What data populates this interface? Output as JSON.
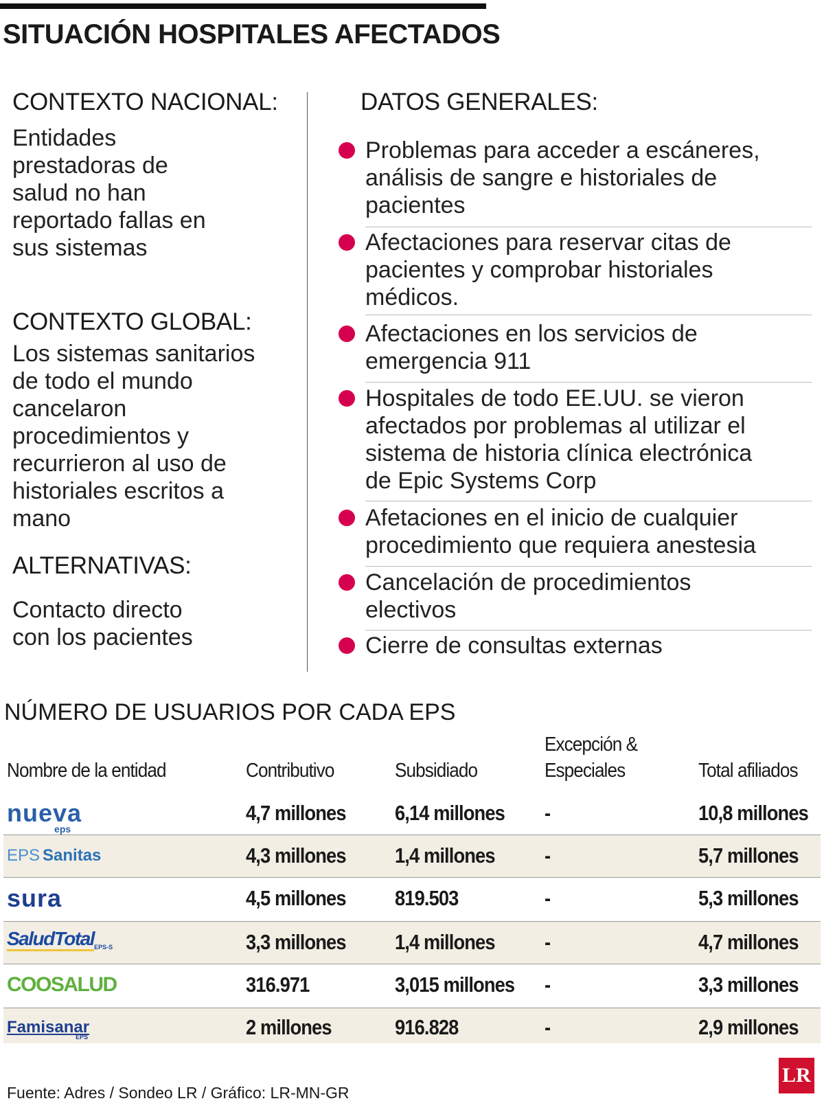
{
  "header": {
    "title": "SITUACIÓN HOSPITALES AFECTADOS"
  },
  "left": [
    {
      "heading": "CONTEXTO NACIONAL:",
      "lines": [
        "Entidades",
        "prestadoras de",
        "salud no han",
        "reportado fallas en",
        "sus sistemas"
      ]
    },
    {
      "heading": "CONTEXTO GLOBAL:",
      "lines": [
        "Los sistemas sanitarios",
        "de todo el mundo",
        "cancelaron",
        "procedimientos y",
        "recurrieron al uso de",
        "historiales escritos a",
        "mano"
      ]
    },
    {
      "heading": "ALTERNATIVAS:",
      "lines": [
        "Contacto directo",
        "con los pacientes"
      ]
    }
  ],
  "right": {
    "heading": "DATOS GENERALES:",
    "items": [
      [
        "Problemas para acceder a escáneres,",
        "análisis de sangre e historiales de",
        "pacientes"
      ],
      [
        "Afectaciones para reservar citas de",
        "pacientes y comprobar historiales",
        "médicos."
      ],
      [
        "Afectaciones en los servicios de",
        "emergencia 911"
      ],
      [
        "Hospitales de todo EE.UU. se vieron",
        "afectados por problemas al utilizar el",
        "sistema de historia clínica electrónica",
        "de Epic Systems Corp"
      ],
      [
        "Afetaciones en el inicio de cualquier",
        "procedimiento que requiera anestesia"
      ],
      [
        "Cancelación de procedimientos",
        "electivos"
      ],
      [
        "Cierre de consultas externas"
      ]
    ]
  },
  "table": {
    "title": "NÚMERO DE USUARIOS POR CADA EPS",
    "headers": [
      [
        "Nombre de la entidad"
      ],
      [
        "Contributivo"
      ],
      [
        "Subsidiado"
      ],
      [
        "Excepción &",
        "Especiales"
      ],
      [
        "Total afiliados"
      ]
    ],
    "rows": [
      {
        "logo": [
          "nueva",
          "eps"
        ],
        "cells": [
          "4,7 millones",
          "6,14 millones",
          "-",
          "10,8 millones"
        ]
      },
      {
        "logo": [
          "EPS",
          "Sanitas"
        ],
        "cells": [
          "4,3 millones",
          "1,4 millones",
          "-",
          "5,7 millones"
        ]
      },
      {
        "logo": [
          "sura"
        ],
        "cells": [
          "4,5 millones",
          "819.503",
          "-",
          "5,3 millones"
        ]
      },
      {
        "logo": [
          "SaludTotal",
          "EPS-S"
        ],
        "cells": [
          "3,3 millones",
          "1,4 millones",
          "-",
          "4,7 millones"
        ]
      },
      {
        "logo": [
          "COOSALUD"
        ],
        "cells": [
          "316.971",
          "3,015 millones",
          "-",
          "3,3 millones"
        ]
      },
      {
        "logo": [
          "Famisanar",
          "EPS"
        ],
        "cells": [
          "2 millones",
          "916.828",
          "-",
          "2,9 millones"
        ]
      }
    ]
  },
  "footer": {
    "source": "Fuente: Adres / Sondeo LR / Gráfico: LR-MN-GR",
    "brand": "LR"
  }
}
